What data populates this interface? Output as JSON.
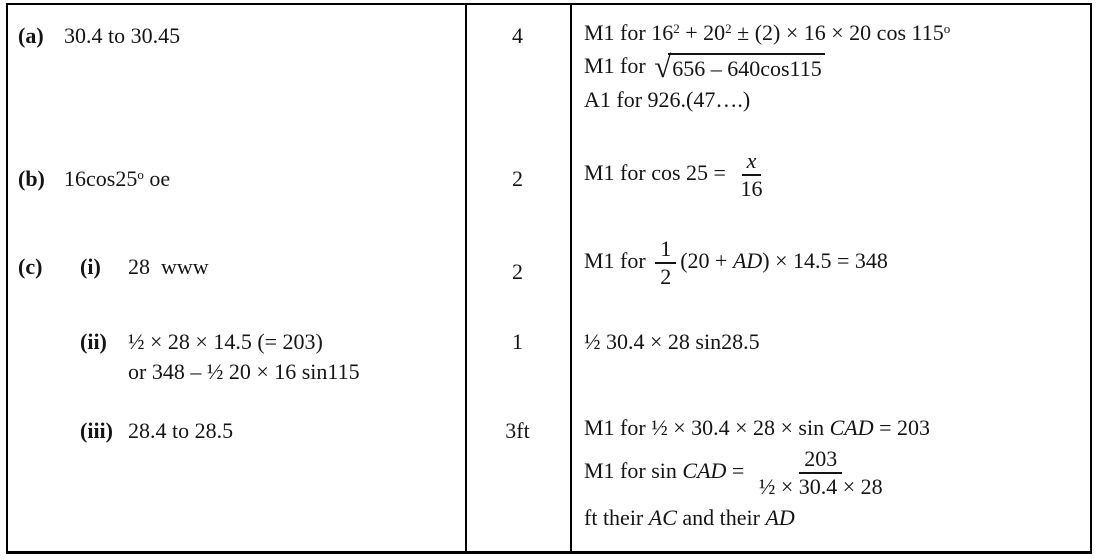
{
  "colors": {
    "background": "#ffffff",
    "border": "#000000",
    "text": "#141414"
  },
  "table": {
    "rows": [
      {
        "id": "a",
        "label1": "(a)",
        "label2": null,
        "answer": [
          [
            {
              "t": "30.4 to 30.45"
            }
          ]
        ],
        "mark": "4",
        "guidance": [
          [
            {
              "t": "M1 for 16"
            },
            {
              "sup": "2"
            },
            {
              "t": " + 20"
            },
            {
              "sup": "2"
            },
            {
              "t": " ± (2) × 16 × 20 cos 115"
            },
            {
              "sup": "o"
            }
          ],
          [
            {
              "t": "M1 for "
            },
            {
              "sqrt": [
                {
                  "t": "656 – 640cos115"
                }
              ]
            }
          ],
          [
            {
              "t": "A1 for 926.(47….)"
            }
          ]
        ]
      },
      {
        "id": "b",
        "label1": "(b)",
        "label2": null,
        "answer": [
          [
            {
              "t": "16cos25"
            },
            {
              "sup": "o"
            },
            {
              "t": " oe"
            }
          ]
        ],
        "mark": "2",
        "guidance": [
          [
            {
              "t": "M1 for cos 25 = "
            },
            {
              "frac": {
                "num": [
                  {
                    "i": "x"
                  }
                ],
                "den": [
                  {
                    "t": "16"
                  }
                ]
              }
            }
          ]
        ]
      },
      {
        "id": "c1",
        "label1": "(c)",
        "label2": "(i)",
        "answer": [
          [
            {
              "t": "28  www"
            }
          ]
        ],
        "mark": "2",
        "guidance": [
          [
            {
              "t": "M1 for "
            },
            {
              "frac": {
                "num": [
                  {
                    "t": "1"
                  }
                ],
                "den": [
                  {
                    "t": "2"
                  }
                ]
              }
            },
            {
              "t": "(20 + "
            },
            {
              "i": "AD"
            },
            {
              "t": ") × 14.5 = 348"
            }
          ]
        ]
      },
      {
        "id": "c2",
        "label1": "",
        "label2": "(ii)",
        "answer": [
          [
            {
              "t": "½ × 28 × 14.5 (= 203)"
            }
          ],
          [
            {
              "t": "or 348 – ½ 20 × 16 sin115"
            }
          ]
        ],
        "mark": "1",
        "guidance": [
          [
            {
              "t": "½ 30.4 × 28 sin28.5"
            }
          ]
        ]
      },
      {
        "id": "c3",
        "label1": "",
        "label2": "(iii)",
        "answer": [
          [
            {
              "t": "28.4 to 28.5"
            }
          ]
        ],
        "mark": "3ft",
        "guidance": [
          [
            {
              "t": "M1 for ½ × 30.4 × 28 × sin "
            },
            {
              "i": "CAD"
            },
            {
              "t": " = 203"
            }
          ],
          [
            {
              "t": "M1 for sin "
            },
            {
              "i": "CAD"
            },
            {
              "t": " = "
            },
            {
              "frac": {
                "num": [
                  {
                    "t": "203"
                  }
                ],
                "den": [
                  {
                    "t": "½ × 30.4 × 28"
                  }
                ]
              }
            }
          ],
          [
            {
              "t": "ft their "
            },
            {
              "i": "AC"
            },
            {
              "t": " and their "
            },
            {
              "i": "AD"
            }
          ]
        ]
      }
    ]
  }
}
